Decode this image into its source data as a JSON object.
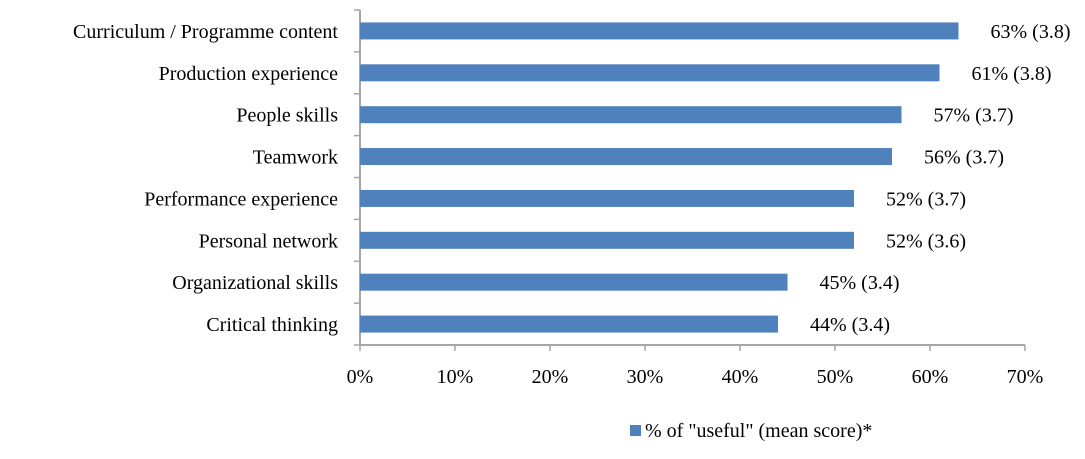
{
  "chart_data": {
    "type": "bar",
    "orientation": "horizontal",
    "categories": [
      "Curriculum / Programme content",
      "Production experience",
      "People skills",
      "Teamwork",
      "Performance experience",
      "Personal network",
      "Organizational skills",
      "Critical thinking"
    ],
    "series": [
      {
        "name": "% of \"useful\" (mean score)*",
        "values": [
          63,
          61,
          57,
          56,
          52,
          52,
          45,
          44
        ],
        "labels": [
          "63% (3.8)",
          "61% (3.8)",
          "57% (3.7)",
          "56% (3.7)",
          "52% (3.7)",
          "52% (3.6)",
          "45% (3.4)",
          "44% (3.4)"
        ]
      }
    ],
    "xlim": [
      0,
      70
    ],
    "x_ticks": [
      "0%",
      "10%",
      "20%",
      "30%",
      "40%",
      "50%",
      "60%",
      "70%"
    ],
    "x_tick_values": [
      0,
      10,
      20,
      30,
      40,
      50,
      60,
      70
    ],
    "grid": false,
    "legend_position": "bottom",
    "bar_color": "#4f81bd",
    "axis_color": "#a6a6a6"
  }
}
